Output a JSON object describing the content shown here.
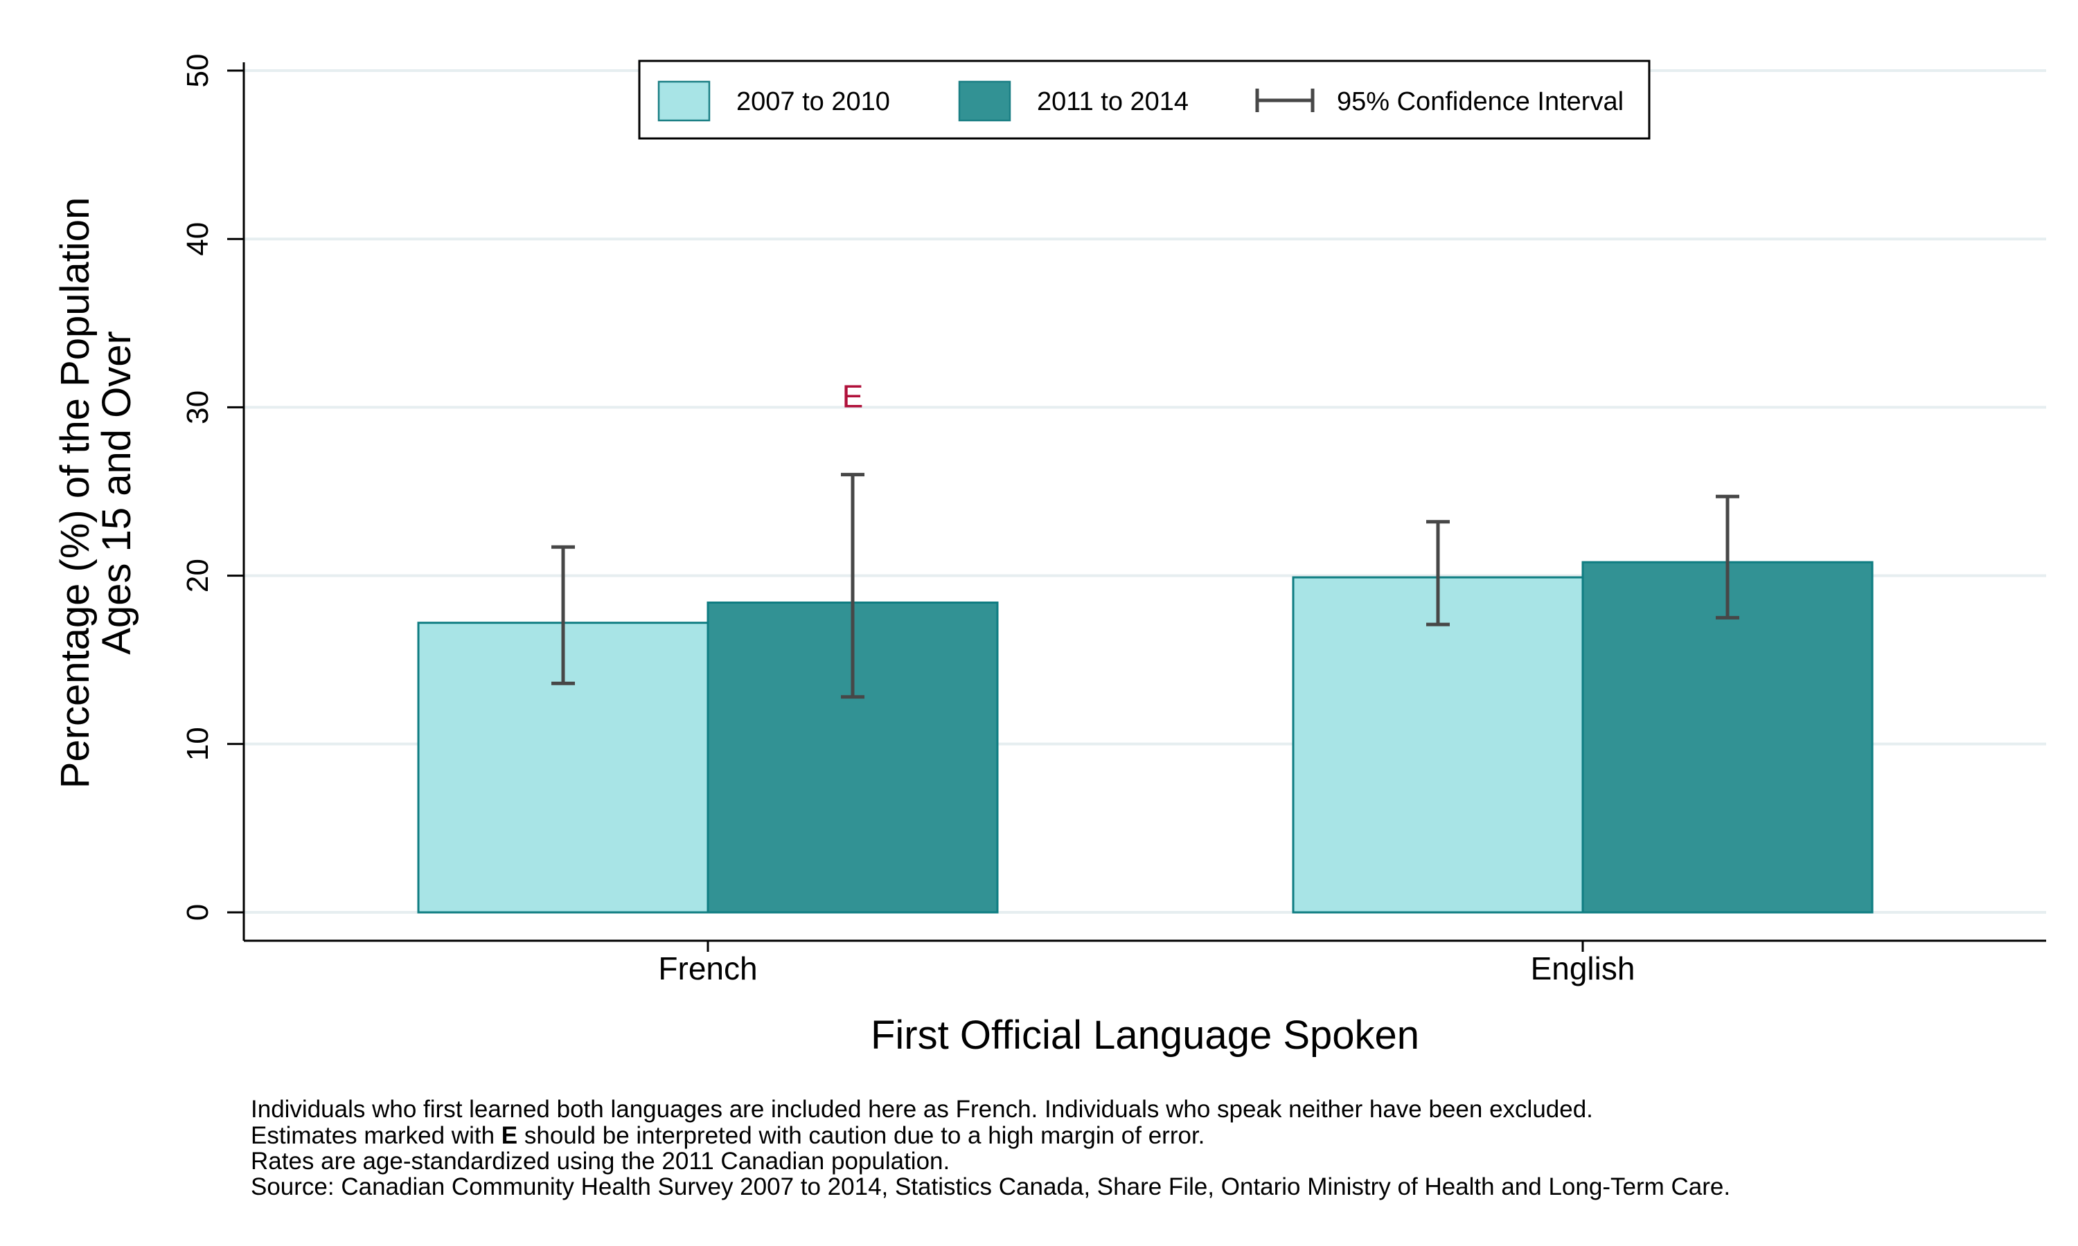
{
  "chart_data": {
    "type": "bar",
    "xlabel": "First Official Language Spoken",
    "ylabel_lines": [
      "Percentage (%) of the Population",
      "Ages 15 and Over"
    ],
    "categories": [
      "French",
      "English"
    ],
    "ylim": [
      0,
      50
    ],
    "yticks": [
      "0",
      "10",
      "20",
      "30",
      "40",
      "50"
    ],
    "grid": true,
    "legend_position": "top",
    "series": [
      {
        "name": "2007 to 2010",
        "color": "#a8e4e6",
        "values": [
          17.2,
          19.9
        ],
        "ci_low": [
          13.6,
          17.1
        ],
        "ci_high": [
          21.7,
          23.2
        ]
      },
      {
        "name": "2011 to 2014",
        "color": "#329294",
        "values": [
          18.4,
          20.8
        ],
        "ci_low": [
          12.8,
          17.5
        ],
        "ci_high": [
          26.0,
          24.7
        ]
      }
    ],
    "ci_legend_label": "95% Confidence Interval",
    "annotations": [
      {
        "text": "E",
        "category": "French",
        "series": "2011 to 2014"
      }
    ],
    "notes": [
      "Individuals who first learned both languages are included here as French.  Individuals who speak neither have been excluded.",
      "Estimates marked with E should be interpreted with caution due to a high margin of error.",
      "Rates are age-standardized using the 2011 Canadian population.",
      "Source: Canadian Community Health Survey 2007 to 2014, Statistics Canada, Share File, Ontario Ministry of Health and Long-Term Care."
    ]
  }
}
